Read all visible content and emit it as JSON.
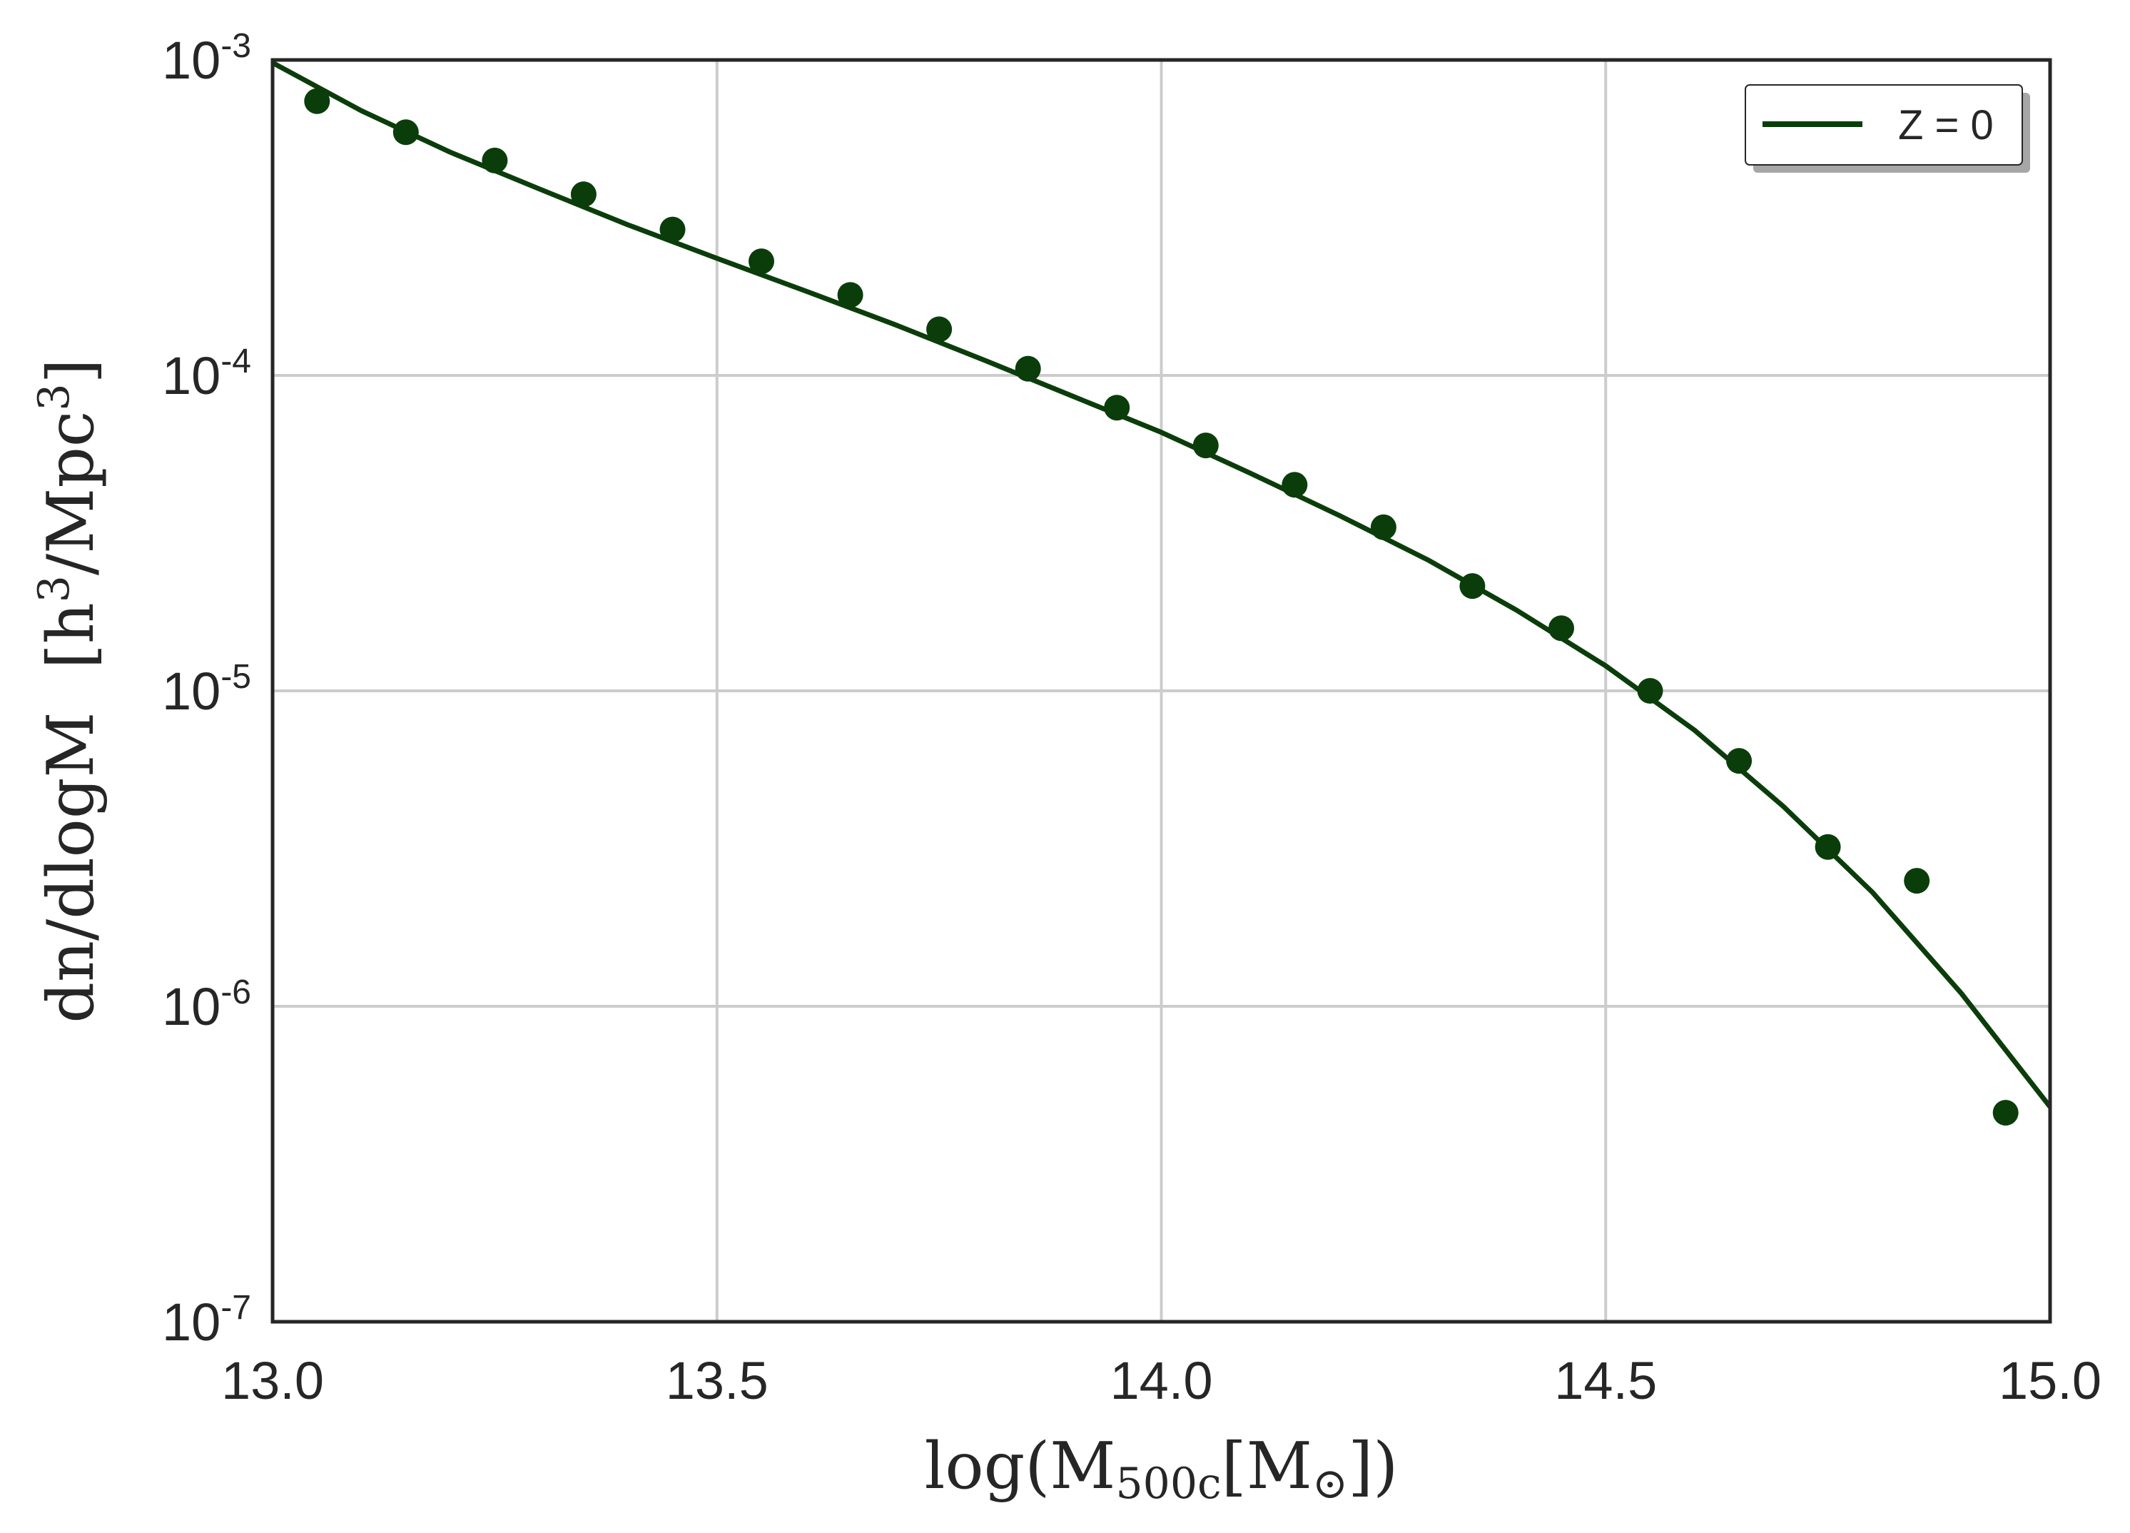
{
  "chart_data": {
    "type": "line",
    "xlabel_parts": [
      "log(M",
      "500c",
      "[M",
      "⊙",
      "])"
    ],
    "ylabel_parts": [
      "dn/dlogM",
      "[h",
      "3",
      "/Mpc",
      "3",
      "]"
    ],
    "xlim": [
      13.0,
      15.0
    ],
    "ylim": [
      1e-07,
      0.001
    ],
    "yscale": "log",
    "grid": true,
    "legend_placement": "top-right",
    "x_ticks": [
      "13.0",
      "13.5",
      "14.0",
      "14.5",
      "15.0"
    ],
    "y_ticks": [
      {
        "base": "10",
        "exp": "-3"
      },
      {
        "base": "10",
        "exp": "-4"
      },
      {
        "base": "10",
        "exp": "-5"
      },
      {
        "base": "10",
        "exp": "-6"
      },
      {
        "base": "10",
        "exp": "-7"
      }
    ],
    "series": [
      {
        "name": "Z = 0",
        "kind": "line",
        "color": "#0b3d0b",
        "x": [
          13.0,
          13.1,
          13.2,
          13.3,
          13.4,
          13.5,
          13.6,
          13.7,
          13.8,
          13.9,
          14.0,
          14.1,
          14.2,
          14.3,
          14.4,
          14.5,
          14.6,
          14.7,
          14.8,
          14.9,
          15.0
        ],
        "y": [
          0.00098,
          0.00069,
          0.00051,
          0.00039,
          0.0003,
          0.000235,
          0.000185,
          0.000145,
          0.000112,
          8.6e-05,
          6.6e-05,
          4.9e-05,
          3.6e-05,
          2.6e-05,
          1.8e-05,
          1.2e-05,
          7.5e-06,
          4.3e-06,
          2.3e-06,
          1.1e-06,
          4.8e-07
        ]
      },
      {
        "kind": "scatter",
        "color": "#0b3d0b",
        "x": [
          13.05,
          13.15,
          13.25,
          13.35,
          13.45,
          13.55,
          13.65,
          13.75,
          13.85,
          13.95,
          14.05,
          14.15,
          14.25,
          14.35,
          14.45,
          14.55,
          14.65,
          14.75,
          14.85,
          14.95
        ],
        "y": [
          0.00074,
          0.00059,
          0.00048,
          0.000375,
          0.00029,
          0.00023,
          0.00018,
          0.00014,
          0.000105,
          7.9e-05,
          6e-05,
          4.5e-05,
          3.3e-05,
          2.15e-05,
          1.58e-05,
          1e-05,
          6e-06,
          3.2e-06,
          2.5e-06,
          4.6e-07
        ]
      }
    ]
  }
}
